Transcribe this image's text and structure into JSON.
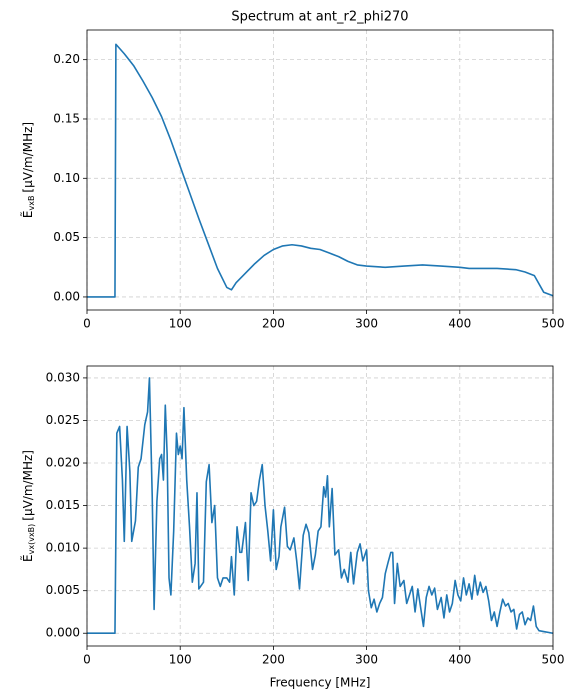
{
  "chart_data": [
    {
      "type": "line",
      "title": "Spectrum at ant_r2_phi270",
      "ylabel": {
        "symbol": "Ẽ",
        "subscript": "vxB",
        "unit": "[μV/m/MHz]"
      },
      "x": [
        0,
        30,
        31,
        40,
        50,
        60,
        70,
        80,
        90,
        100,
        110,
        120,
        130,
        140,
        150,
        155,
        160,
        170,
        180,
        190,
        200,
        210,
        220,
        230,
        240,
        250,
        260,
        270,
        280,
        290,
        300,
        320,
        340,
        360,
        380,
        400,
        410,
        420,
        440,
        460,
        470,
        480,
        490,
        500
      ],
      "series": [
        {
          "name": "E_vxB",
          "color": "#1f77b4",
          "values": [
            0,
            0,
            0.213,
            0.205,
            0.195,
            0.182,
            0.168,
            0.152,
            0.132,
            0.11,
            0.088,
            0.066,
            0.045,
            0.024,
            0.008,
            0.006,
            0.012,
            0.02,
            0.028,
            0.035,
            0.04,
            0.043,
            0.044,
            0.043,
            0.041,
            0.04,
            0.037,
            0.034,
            0.03,
            0.027,
            0.026,
            0.025,
            0.026,
            0.027,
            0.026,
            0.025,
            0.024,
            0.024,
            0.024,
            0.023,
            0.021,
            0.018,
            0.004,
            0.001
          ]
        }
      ],
      "xlim": [
        0,
        500
      ],
      "xticks": [
        0,
        100,
        200,
        300,
        400,
        500
      ],
      "ylim": [
        -0.011,
        0.225
      ],
      "yticks": [
        {
          "value": 0,
          "label": "0.00"
        },
        {
          "value": 0.05,
          "label": "0.05"
        },
        {
          "value": 0.1,
          "label": "0.10"
        },
        {
          "value": 0.15,
          "label": "0.15"
        },
        {
          "value": 0.2,
          "label": "0.20"
        }
      ],
      "grid": true
    },
    {
      "type": "line",
      "xlabel": "Frequency [MHz]",
      "ylabel": {
        "symbol": "Ẽ",
        "subscript": "vx(vxB)",
        "unit": "[μV/m/MHz]"
      },
      "x": [
        0,
        30,
        32,
        35,
        38,
        40,
        43,
        46,
        48,
        52,
        55,
        58,
        62,
        65,
        67,
        70,
        72,
        75,
        78,
        80,
        82,
        84,
        86,
        88,
        90,
        93,
        96,
        98,
        100,
        102,
        104,
        107,
        110,
        113,
        116,
        118,
        120,
        125,
        128,
        131,
        134,
        137,
        140,
        143,
        146,
        150,
        153,
        155,
        158,
        161,
        164,
        166,
        170,
        173,
        176,
        179,
        182,
        185,
        188,
        191,
        194,
        197,
        200,
        203,
        206,
        208,
        212,
        215,
        218,
        222,
        225,
        228,
        232,
        235,
        238,
        242,
        245,
        248,
        251,
        254,
        256,
        258,
        260,
        263,
        266,
        270,
        273,
        276,
        280,
        283,
        286,
        290,
        293,
        296,
        300,
        302,
        305,
        308,
        311,
        314,
        317,
        320,
        323,
        326,
        328,
        330,
        333,
        336,
        340,
        343,
        346,
        349,
        352,
        355,
        358,
        361,
        364,
        367,
        370,
        373,
        376,
        380,
        383,
        386,
        389,
        392,
        395,
        398,
        401,
        404,
        407,
        410,
        413,
        416,
        419,
        422,
        425,
        428,
        431,
        434,
        437,
        440,
        443,
        446,
        449,
        452,
        455,
        458,
        461,
        464,
        467,
        470,
        473,
        476,
        479,
        482,
        485,
        490,
        500
      ],
      "series": [
        {
          "name": "E_vx(vxB)",
          "color": "#1f77b4",
          "values": [
            0,
            0,
            0.0235,
            0.0243,
            0.018,
            0.0108,
            0.0243,
            0.019,
            0.0108,
            0.0132,
            0.0195,
            0.0205,
            0.0245,
            0.026,
            0.03,
            0.016,
            0.0028,
            0.0155,
            0.0205,
            0.021,
            0.018,
            0.0268,
            0.021,
            0.0065,
            0.0045,
            0.012,
            0.0235,
            0.021,
            0.022,
            0.0205,
            0.0265,
            0.018,
            0.0125,
            0.006,
            0.0082,
            0.0165,
            0.0052,
            0.006,
            0.0178,
            0.0198,
            0.013,
            0.015,
            0.0065,
            0.0055,
            0.0065,
            0.0065,
            0.006,
            0.009,
            0.0045,
            0.0125,
            0.0095,
            0.0095,
            0.013,
            0.0062,
            0.0165,
            0.015,
            0.0155,
            0.018,
            0.0198,
            0.015,
            0.012,
            0.0085,
            0.0145,
            0.0075,
            0.009,
            0.0125,
            0.0148,
            0.0102,
            0.0098,
            0.0112,
            0.0085,
            0.0052,
            0.0115,
            0.0128,
            0.0118,
            0.0075,
            0.0092,
            0.012,
            0.0125,
            0.0172,
            0.016,
            0.0185,
            0.0125,
            0.017,
            0.0092,
            0.0098,
            0.0065,
            0.0075,
            0.006,
            0.0095,
            0.0058,
            0.0095,
            0.0105,
            0.0085,
            0.0098,
            0.005,
            0.003,
            0.004,
            0.0025,
            0.0035,
            0.0042,
            0.007,
            0.0083,
            0.0095,
            0.0095,
            0.0035,
            0.0082,
            0.0055,
            0.0062,
            0.0035,
            0.0045,
            0.0055,
            0.0025,
            0.0052,
            0.003,
            0.0008,
            0.0042,
            0.0055,
            0.0045,
            0.0053,
            0.0028,
            0.0042,
            0.0018,
            0.0045,
            0.0025,
            0.0035,
            0.0062,
            0.0045,
            0.0038,
            0.0065,
            0.0045,
            0.0058,
            0.004,
            0.0068,
            0.0045,
            0.006,
            0.0048,
            0.0055,
            0.0038,
            0.0015,
            0.0025,
            0.0008,
            0.0025,
            0.004,
            0.0032,
            0.0035,
            0.0025,
            0.0028,
            0.0005,
            0.0022,
            0.0025,
            0.001,
            0.0018,
            0.0015,
            0.0032,
            0.0008,
            0.0003,
            0.0002,
            0
          ]
        }
      ],
      "xlim": [
        0,
        500
      ],
      "xticks": [
        0,
        100,
        200,
        300,
        400,
        500
      ],
      "ylim": [
        -0.0015,
        0.0314
      ],
      "yticks": [
        {
          "value": 0,
          "label": "0.000"
        },
        {
          "value": 0.005,
          "label": "0.005"
        },
        {
          "value": 0.01,
          "label": "0.010"
        },
        {
          "value": 0.015,
          "label": "0.015"
        },
        {
          "value": 0.02,
          "label": "0.020"
        },
        {
          "value": 0.025,
          "label": "0.025"
        },
        {
          "value": 0.03,
          "label": "0.030"
        }
      ],
      "grid": true
    }
  ]
}
